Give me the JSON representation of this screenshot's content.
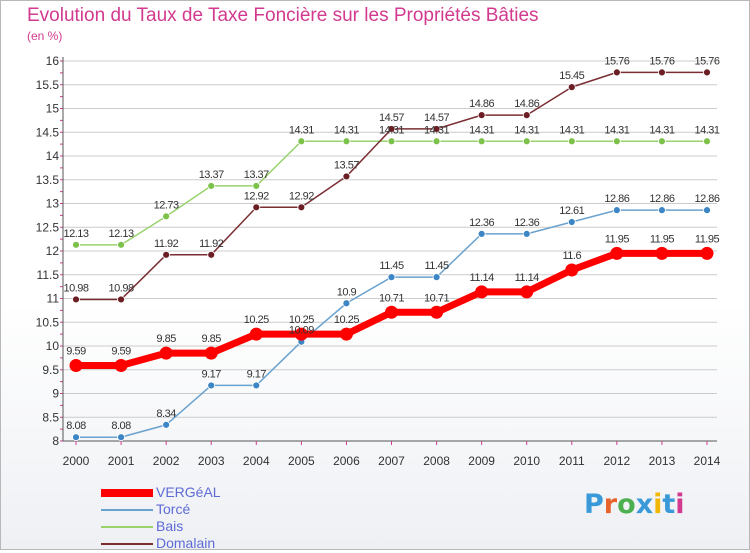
{
  "header": {
    "title": "Evolution du Taux de Taxe Foncière sur les Propriétés Bâties",
    "subtitle": "(en %)"
  },
  "logo": {
    "text": "Proxiti",
    "letters": [
      {
        "char": "P",
        "color": "#3a9ad9"
      },
      {
        "char": "r",
        "color": "#e8622c"
      },
      {
        "char": "o",
        "color": "#4caf50"
      },
      {
        "char": "x",
        "color": "#3a9ad9"
      },
      {
        "char": "i",
        "color": "#f2b705"
      },
      {
        "char": "t",
        "color": "#3a9ad9"
      },
      {
        "char": "i",
        "color": "#d23a8f"
      }
    ]
  },
  "colors": {
    "title": "#d23a8f",
    "grid": "#cccccc",
    "axis_tick": "#d23a8f",
    "legend_text": "#5e6bd6"
  },
  "chart_data": {
    "type": "line",
    "title": "Evolution du Taux de Taxe Foncière sur les Propriétés Bâties",
    "ylabel": "(en %)",
    "xlabel": "",
    "x": [
      "2000",
      "2001",
      "2002",
      "2003",
      "2004",
      "2005",
      "2006",
      "2007",
      "2008",
      "2009",
      "2010",
      "2011",
      "2012",
      "2013",
      "2014"
    ],
    "ylim": [
      8,
      16
    ],
    "yticks": [
      "8",
      "8.5",
      "9",
      "9.5",
      "10",
      "10.5",
      "11",
      "11.5",
      "12",
      "12.5",
      "13",
      "13.5",
      "14",
      "14.5",
      "15",
      "15.5",
      "16"
    ],
    "grid": "horizontal",
    "legend_position": "bottom-left",
    "series": [
      {
        "name": "VERGéAL",
        "color": "#ff0000",
        "emphasis": true,
        "values": [
          9.59,
          9.59,
          9.85,
          9.85,
          10.25,
          10.25,
          10.25,
          10.71,
          10.71,
          11.14,
          11.14,
          11.6,
          11.95,
          11.95,
          11.95
        ],
        "labels": [
          "9.59",
          "9.59",
          "9.85",
          "9.85",
          "10.25",
          "10.25",
          "10.25",
          "10.71",
          "10.71",
          "11.14",
          "11.14",
          "11.6",
          "11.95",
          "11.95",
          "11.95"
        ]
      },
      {
        "name": "Torcé",
        "color": "#6aa2cf",
        "marker": "#3d86c6",
        "emphasis": false,
        "values": [
          8.08,
          8.08,
          8.34,
          9.17,
          9.17,
          10.09,
          10.9,
          11.45,
          11.45,
          12.36,
          12.36,
          12.61,
          12.86,
          12.86,
          12.86
        ],
        "labels": [
          "8.08",
          "8.08",
          "8.34",
          "9.17",
          "9.17",
          "10.09",
          "10.9",
          "11.45",
          "11.45",
          "12.36",
          "12.36",
          "12.61",
          "12.86",
          "12.86",
          "12.86"
        ]
      },
      {
        "name": "Bais",
        "color": "#9ad26e",
        "marker": "#7cc24a",
        "emphasis": false,
        "values": [
          12.13,
          12.13,
          12.73,
          13.37,
          13.37,
          14.31,
          14.31,
          14.31,
          14.31,
          14.31,
          14.31,
          14.31,
          14.31,
          14.31,
          14.31
        ],
        "labels": [
          "12.13",
          "12.13",
          "12.73",
          "13.37",
          "13.37",
          "14.31",
          "14.31",
          "14.31",
          "14.31",
          "14.31",
          "14.31",
          "14.31",
          "14.31",
          "14.31",
          "14.31"
        ]
      },
      {
        "name": "Domalain",
        "color": "#7a2e32",
        "marker": "#6b1f25",
        "emphasis": false,
        "values": [
          10.98,
          10.98,
          11.92,
          11.92,
          12.92,
          12.92,
          13.57,
          14.57,
          14.57,
          14.86,
          14.86,
          15.45,
          15.76,
          15.76,
          15.76
        ],
        "labels": [
          "10.98",
          "10.98",
          "11.92",
          "11.92",
          "12.92",
          "12.92",
          "13.57",
          "14.57",
          "14.57",
          "14.86",
          "14.86",
          "15.45",
          "15.76",
          "15.76",
          "15.76"
        ]
      }
    ]
  }
}
